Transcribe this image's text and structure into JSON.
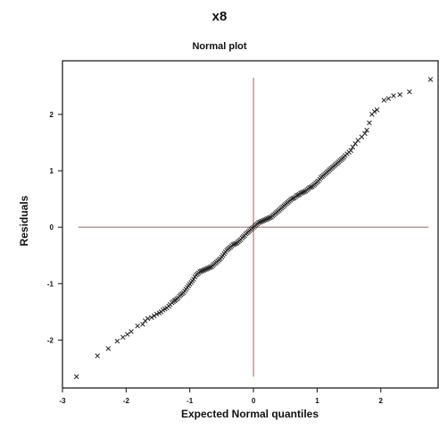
{
  "figure": {
    "title": "x8"
  },
  "chart_data": {
    "type": "scatter",
    "title": "Normal plot",
    "xlabel": "Expected Normal quantiles",
    "ylabel": "Residuals",
    "xlim": [
      -3,
      2.9
    ],
    "ylim": [
      -2.85,
      2.95
    ],
    "xticks": [
      -3,
      -2,
      -1,
      0,
      1,
      2
    ],
    "yticks": [
      -2,
      -1,
      0,
      1,
      2
    ],
    "marker": "x",
    "marker_color": "#222222",
    "reference_line_color": "#b85a5a",
    "reference_lines": {
      "x": 0,
      "y": 0,
      "y_range": [
        -2.65,
        2.65
      ],
      "x_range": [
        -2.75,
        2.75
      ]
    },
    "grid": false,
    "points": [
      [
        -2.78,
        -2.65
      ],
      [
        -2.45,
        -2.28
      ],
      [
        -2.28,
        -2.15
      ],
      [
        -2.14,
        -2.02
      ],
      [
        -2.05,
        -1.95
      ],
      [
        -1.98,
        -1.9
      ],
      [
        -1.92,
        -1.85
      ],
      [
        -1.82,
        -1.75
      ],
      [
        -1.74,
        -1.72
      ],
      [
        -1.7,
        -1.66
      ],
      [
        -1.66,
        -1.62
      ],
      [
        -1.6,
        -1.6
      ],
      [
        -1.56,
        -1.57
      ],
      [
        -1.52,
        -1.54
      ],
      [
        -1.48,
        -1.52
      ],
      [
        -1.45,
        -1.5
      ],
      [
        -1.42,
        -1.47
      ],
      [
        -1.39,
        -1.45
      ],
      [
        -1.36,
        -1.43
      ],
      [
        -1.33,
        -1.4
      ],
      [
        -1.31,
        -1.37
      ],
      [
        -1.28,
        -1.34
      ],
      [
        -1.26,
        -1.32
      ],
      [
        -1.24,
        -1.3
      ],
      [
        -1.22,
        -1.29
      ],
      [
        -1.2,
        -1.27
      ],
      [
        -1.18,
        -1.25
      ],
      [
        -1.16,
        -1.22
      ],
      [
        -1.14,
        -1.2
      ],
      [
        -1.12,
        -1.18
      ],
      [
        -1.1,
        -1.16
      ],
      [
        -1.08,
        -1.13
      ],
      [
        -1.06,
        -1.1
      ],
      [
        -1.04,
        -1.07
      ],
      [
        -1.02,
        -1.04
      ],
      [
        -1.0,
        -1.01
      ],
      [
        -0.98,
        -0.98
      ],
      [
        -0.96,
        -0.95
      ],
      [
        -0.94,
        -0.92
      ],
      [
        -0.92,
        -0.88
      ],
      [
        -0.9,
        -0.85
      ],
      [
        -0.88,
        -0.83
      ],
      [
        -0.86,
        -0.81
      ],
      [
        -0.84,
        -0.79
      ],
      [
        -0.82,
        -0.78
      ],
      [
        -0.8,
        -0.77
      ],
      [
        -0.78,
        -0.76
      ],
      [
        -0.76,
        -0.75
      ],
      [
        -0.74,
        -0.74
      ],
      [
        -0.72,
        -0.73
      ],
      [
        -0.7,
        -0.72
      ],
      [
        -0.68,
        -0.71
      ],
      [
        -0.66,
        -0.7
      ],
      [
        -0.64,
        -0.68
      ],
      [
        -0.62,
        -0.66
      ],
      [
        -0.6,
        -0.64
      ],
      [
        -0.58,
        -0.62
      ],
      [
        -0.56,
        -0.6
      ],
      [
        -0.54,
        -0.58
      ],
      [
        -0.52,
        -0.56
      ],
      [
        -0.5,
        -0.53
      ],
      [
        -0.48,
        -0.5
      ],
      [
        -0.46,
        -0.47
      ],
      [
        -0.44,
        -0.44
      ],
      [
        -0.42,
        -0.41
      ],
      [
        -0.4,
        -0.39
      ],
      [
        -0.38,
        -0.37
      ],
      [
        -0.36,
        -0.35
      ],
      [
        -0.34,
        -0.33
      ],
      [
        -0.32,
        -0.31
      ],
      [
        -0.3,
        -0.3
      ],
      [
        -0.28,
        -0.29
      ],
      [
        -0.26,
        -0.28
      ],
      [
        -0.24,
        -0.26
      ],
      [
        -0.22,
        -0.24
      ],
      [
        -0.2,
        -0.22
      ],
      [
        -0.18,
        -0.19
      ],
      [
        -0.16,
        -0.17
      ],
      [
        -0.14,
        -0.15
      ],
      [
        -0.12,
        -0.12
      ],
      [
        -0.1,
        -0.1
      ],
      [
        -0.08,
        -0.08
      ],
      [
        -0.06,
        -0.06
      ],
      [
        -0.04,
        -0.04
      ],
      [
        -0.02,
        -0.02
      ],
      [
        0.0,
        0.0
      ],
      [
        0.02,
        0.02
      ],
      [
        0.04,
        0.04
      ],
      [
        0.06,
        0.06
      ],
      [
        0.08,
        0.08
      ],
      [
        0.1,
        0.09
      ],
      [
        0.12,
        0.1
      ],
      [
        0.14,
        0.11
      ],
      [
        0.16,
        0.12
      ],
      [
        0.18,
        0.13
      ],
      [
        0.2,
        0.14
      ],
      [
        0.22,
        0.15
      ],
      [
        0.24,
        0.16
      ],
      [
        0.26,
        0.17
      ],
      [
        0.28,
        0.18
      ],
      [
        0.3,
        0.2
      ],
      [
        0.32,
        0.22
      ],
      [
        0.34,
        0.24
      ],
      [
        0.36,
        0.26
      ],
      [
        0.38,
        0.28
      ],
      [
        0.4,
        0.3
      ],
      [
        0.42,
        0.32
      ],
      [
        0.44,
        0.34
      ],
      [
        0.46,
        0.36
      ],
      [
        0.48,
        0.38
      ],
      [
        0.5,
        0.4
      ],
      [
        0.52,
        0.42
      ],
      [
        0.54,
        0.44
      ],
      [
        0.56,
        0.46
      ],
      [
        0.58,
        0.48
      ],
      [
        0.6,
        0.5
      ],
      [
        0.62,
        0.51
      ],
      [
        0.64,
        0.52
      ],
      [
        0.66,
        0.54
      ],
      [
        0.68,
        0.56
      ],
      [
        0.7,
        0.57
      ],
      [
        0.72,
        0.58
      ],
      [
        0.74,
        0.6
      ],
      [
        0.76,
        0.61
      ],
      [
        0.78,
        0.62
      ],
      [
        0.8,
        0.63
      ],
      [
        0.82,
        0.64
      ],
      [
        0.84,
        0.66
      ],
      [
        0.86,
        0.68
      ],
      [
        0.88,
        0.7
      ],
      [
        0.9,
        0.71
      ],
      [
        0.92,
        0.72
      ],
      [
        0.94,
        0.74
      ],
      [
        0.96,
        0.76
      ],
      [
        0.98,
        0.78
      ],
      [
        1.0,
        0.8
      ],
      [
        1.02,
        0.82
      ],
      [
        1.04,
        0.85
      ],
      [
        1.06,
        0.88
      ],
      [
        1.08,
        0.9
      ],
      [
        1.1,
        0.92
      ],
      [
        1.12,
        0.94
      ],
      [
        1.14,
        0.96
      ],
      [
        1.16,
        0.98
      ],
      [
        1.18,
        1.0
      ],
      [
        1.2,
        1.02
      ],
      [
        1.22,
        1.04
      ],
      [
        1.24,
        1.06
      ],
      [
        1.26,
        1.08
      ],
      [
        1.28,
        1.1
      ],
      [
        1.3,
        1.12
      ],
      [
        1.32,
        1.14
      ],
      [
        1.34,
        1.16
      ],
      [
        1.36,
        1.18
      ],
      [
        1.38,
        1.2
      ],
      [
        1.4,
        1.22
      ],
      [
        1.42,
        1.24
      ],
      [
        1.44,
        1.27
      ],
      [
        1.47,
        1.3
      ],
      [
        1.5,
        1.33
      ],
      [
        1.53,
        1.36
      ],
      [
        1.56,
        1.42
      ],
      [
        1.6,
        1.48
      ],
      [
        1.64,
        1.54
      ],
      [
        1.7,
        1.6
      ],
      [
        1.75,
        1.66
      ],
      [
        1.78,
        1.72
      ],
      [
        1.82,
        1.85
      ],
      [
        1.86,
        2.0
      ],
      [
        1.9,
        2.05
      ],
      [
        1.94,
        2.08
      ],
      [
        2.05,
        2.25
      ],
      [
        2.12,
        2.28
      ],
      [
        2.2,
        2.33
      ],
      [
        2.3,
        2.35
      ],
      [
        2.45,
        2.4
      ],
      [
        2.78,
        2.62
      ]
    ]
  }
}
